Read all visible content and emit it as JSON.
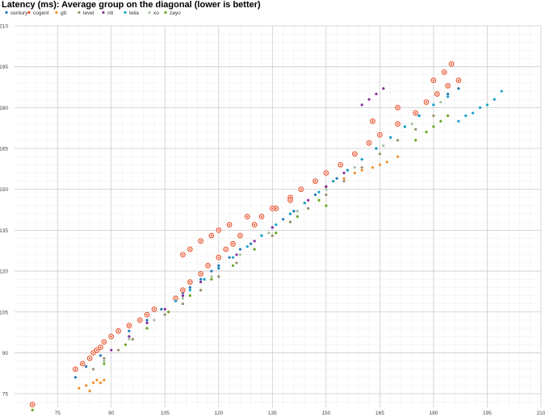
{
  "chart_data": {
    "type": "scatter",
    "title": "Latency (ms): Average group on the diagonal (lower is better)",
    "xlabel": "",
    "ylabel": "",
    "xlim": [
      63,
      210
    ],
    "ylim": [
      70,
      210
    ],
    "x_ticks": [
      75,
      90,
      105,
      120,
      135,
      150,
      165,
      180,
      195,
      210
    ],
    "y_ticks": [
      75,
      90,
      105,
      120,
      135,
      150,
      165,
      180,
      195,
      210
    ],
    "grid": true,
    "legend_position": "top-left",
    "series": [
      {
        "name": "century",
        "color": "#1f77b4",
        "marker": "dot",
        "x": [
          80,
          83,
          87,
          95,
          100,
          104,
          108,
          110,
          112,
          115,
          118,
          120,
          123,
          126,
          129,
          132,
          135,
          138,
          141,
          144,
          147,
          150,
          153,
          156,
          160,
          164,
          168,
          172,
          176,
          180,
          184,
          187
        ],
        "y": [
          81,
          85,
          89,
          98,
          102,
          106,
          110,
          112,
          114,
          117,
          120,
          122,
          125,
          128,
          130,
          133,
          136,
          139,
          142,
          145,
          148,
          151,
          154,
          157,
          161,
          165,
          169,
          173,
          177,
          181,
          185,
          187
        ]
      },
      {
        "name": "cogent",
        "color": "#e8512a",
        "marker": "ring",
        "x": [
          68,
          80,
          82,
          84,
          85,
          86,
          87,
          88,
          90,
          92,
          95,
          98,
          100,
          102,
          108,
          110,
          112,
          115,
          117,
          120,
          122,
          124,
          126,
          130,
          132,
          136,
          140,
          143,
          147,
          150,
          154,
          158,
          162,
          165,
          170,
          175,
          178,
          181,
          184,
          187,
          110,
          112,
          115,
          118,
          120,
          123,
          128,
          135,
          140,
          163,
          170,
          180,
          183,
          185
        ],
        "y": [
          71,
          84,
          86,
          88,
          90,
          91,
          92,
          94,
          96,
          98,
          100,
          102,
          104,
          106,
          110,
          113,
          116,
          119,
          122,
          125,
          128,
          130,
          133,
          137,
          140,
          143,
          147,
          150,
          153,
          156,
          159,
          163,
          167,
          170,
          174,
          178,
          182,
          185,
          188,
          190,
          126,
          128,
          131,
          133,
          135,
          137,
          140,
          143,
          146,
          175,
          180,
          190,
          193,
          196
        ]
      },
      {
        "name": "gtt",
        "color": "#f28e2b",
        "marker": "dot",
        "x": [
          81,
          83,
          84,
          85,
          86,
          87,
          88,
          150,
          152,
          155,
          158,
          160,
          163,
          165,
          167,
          170
        ],
        "y": [
          77,
          78,
          76,
          79,
          80,
          79,
          80,
          151,
          153,
          154,
          156,
          157,
          158,
          159,
          160,
          162
        ]
      },
      {
        "name": "level",
        "color": "#9c8b6e",
        "marker": "dot",
        "x": [
          85,
          88,
          92,
          96,
          100,
          105,
          110,
          115,
          120,
          125,
          130,
          135,
          140,
          145,
          150,
          155,
          160,
          165,
          170,
          175,
          180
        ],
        "y": [
          84,
          88,
          91,
          95,
          99,
          104,
          108,
          113,
          118,
          123,
          128,
          133,
          138,
          143,
          148,
          153,
          158,
          163,
          168,
          172,
          177
        ]
      },
      {
        "name": "ntt",
        "color": "#8c2d9c",
        "marker": "dot",
        "x": [
          90,
          95,
          100,
          105,
          110,
          115,
          120,
          125,
          130,
          135,
          140,
          145,
          150,
          155,
          160,
          162,
          164,
          166
        ],
        "y": [
          91,
          96,
          101,
          106,
          111,
          116,
          121,
          126,
          131,
          136,
          141,
          146,
          151,
          156,
          181,
          183,
          185,
          187
        ]
      },
      {
        "name": "telia",
        "color": "#17a2c8",
        "marker": "dot",
        "x": [
          108,
          112,
          116,
          120,
          124,
          128,
          132,
          136,
          140,
          144,
          148,
          152,
          156,
          160,
          164,
          168,
          172,
          176,
          180,
          184,
          187,
          189,
          191,
          193,
          195,
          197,
          199
        ],
        "y": [
          109,
          113,
          117,
          121,
          125,
          129,
          133,
          137,
          141,
          145,
          149,
          153,
          157,
          161,
          165,
          169,
          173,
          177,
          181,
          184,
          175,
          177,
          178,
          180,
          181,
          183,
          186
        ]
      },
      {
        "name": "xo",
        "color": "#a3c3a0",
        "marker": "dot",
        "x": [
          88,
          95,
          102,
          110,
          118,
          126,
          134,
          142,
          150,
          158,
          166,
          174,
          182
        ],
        "y": [
          87,
          95,
          102,
          110,
          118,
          126,
          134,
          142,
          150,
          158,
          166,
          174,
          182
        ]
      },
      {
        "name": "zayo",
        "color": "#6aa420",
        "marker": "dot",
        "x": [
          68,
          88,
          94,
          100,
          106,
          112,
          118,
          124,
          130,
          136,
          142,
          148,
          150,
          175,
          178,
          180,
          182,
          184
        ],
        "y": [
          69,
          86,
          93,
          99,
          105,
          111,
          117,
          122,
          128,
          134,
          140,
          146,
          144,
          168,
          171,
          173,
          175,
          177
        ]
      }
    ]
  }
}
